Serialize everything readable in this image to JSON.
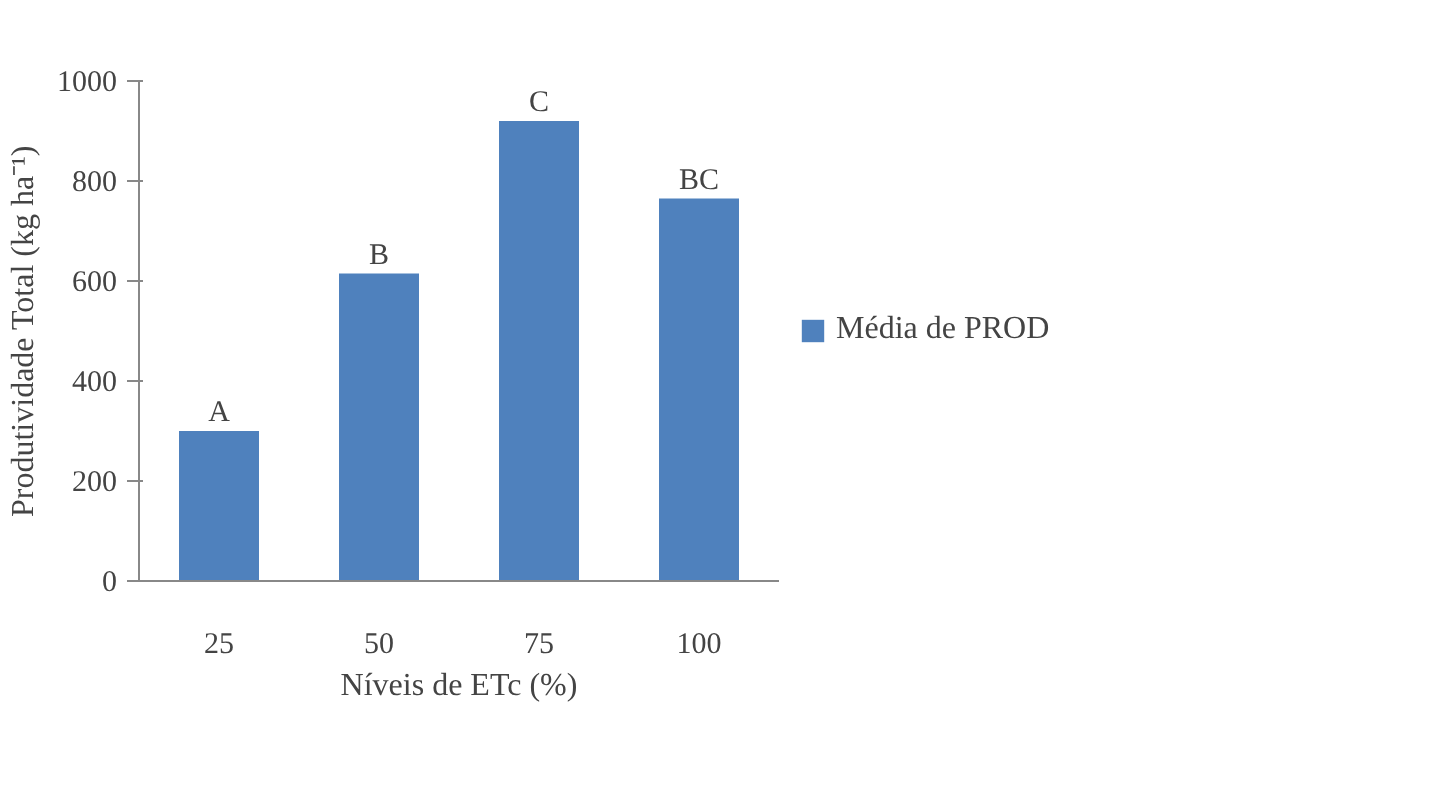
{
  "chart_data": {
    "type": "bar",
    "xlabel": "Níveis de ETc (%)",
    "ylabel": "Produtividade Total (kg ha⁻¹)",
    "categories": [
      "25",
      "50",
      "75",
      "100"
    ],
    "series": [
      {
        "name": "Média de PROD",
        "color": "#4f81bd",
        "values": [
          300,
          615,
          920,
          765
        ]
      }
    ],
    "ylim": [
      0,
      1000
    ],
    "yticks": [
      0,
      200,
      400,
      600,
      800,
      1000
    ],
    "grid": false,
    "legend": "right",
    "annotations": [
      {
        "text": "A",
        "x": "25",
        "y": 300
      },
      {
        "text": "B",
        "x": "50",
        "y": 615
      },
      {
        "text": "C",
        "x": "75",
        "y": 920
      },
      {
        "text": "BC",
        "x": "100",
        "y": 765
      }
    ]
  }
}
